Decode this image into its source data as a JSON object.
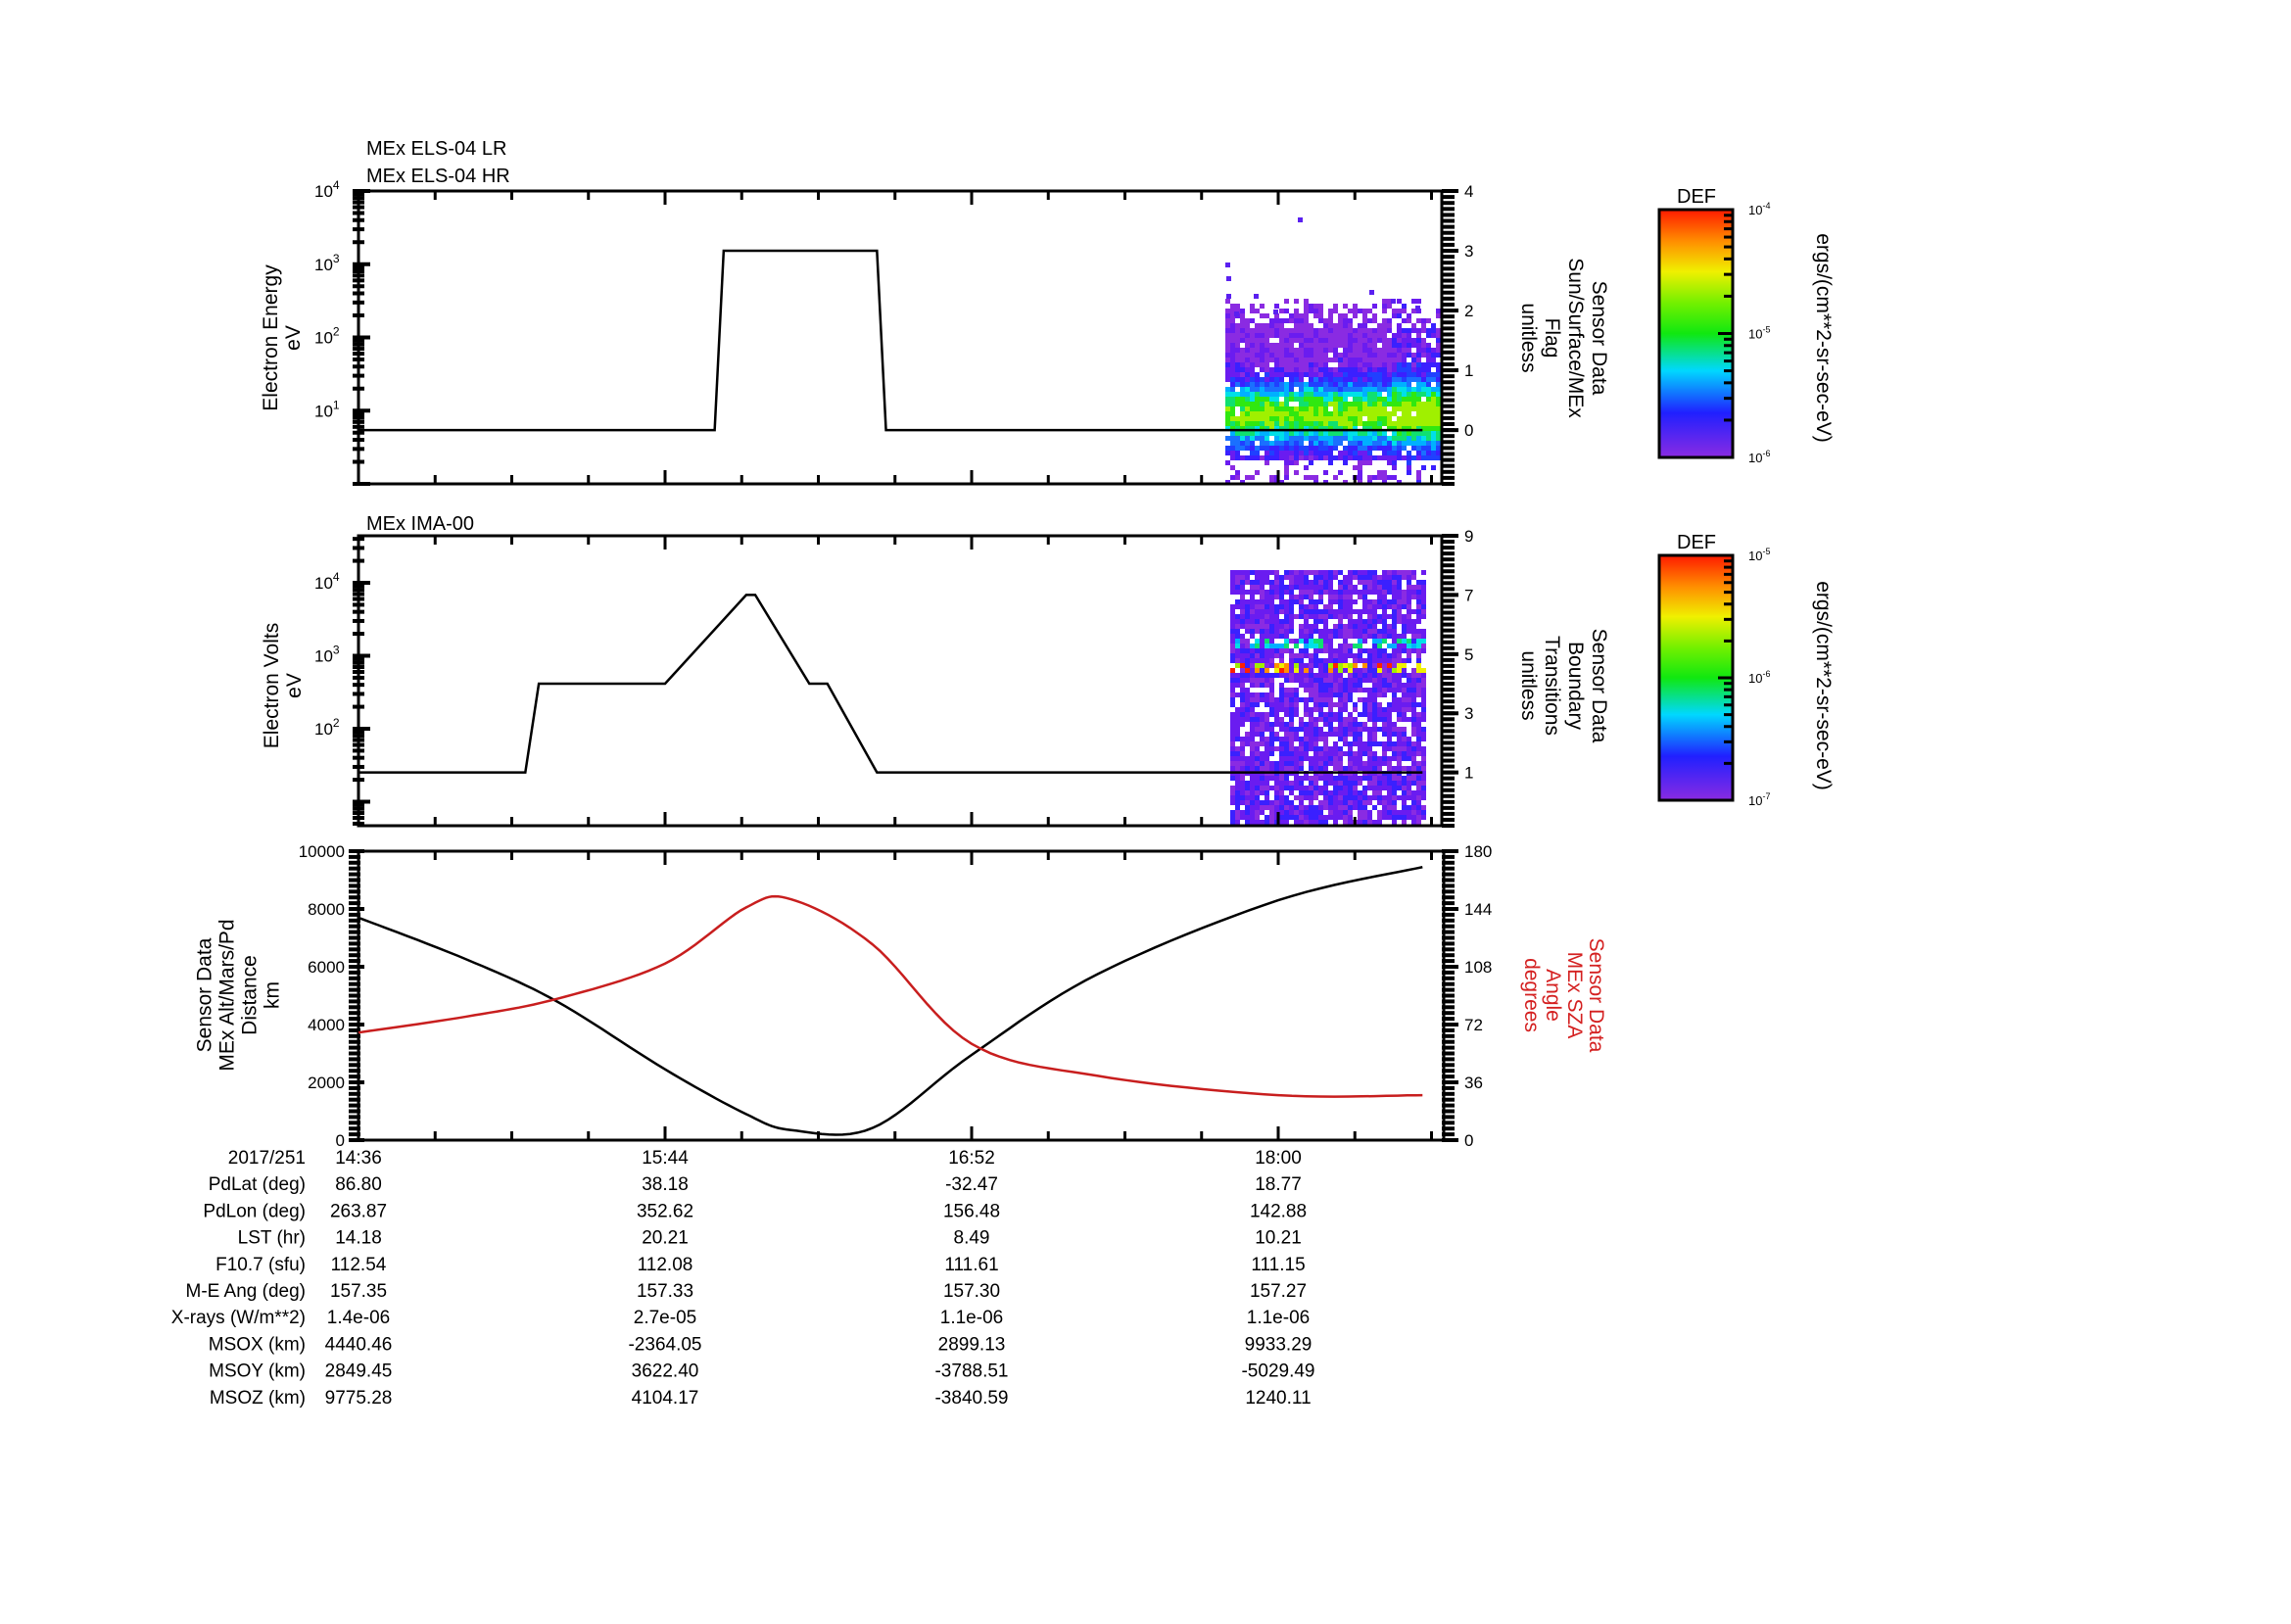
{
  "figure": {
    "instrument_titles": [
      "MEx ELS-04 LR",
      "MEx ELS-04 HR"
    ],
    "panel2_title": "MEx IMA-00",
    "date": "2017/251"
  },
  "colors": {
    "line_black": "#000000",
    "line_red": "#c81e1e",
    "sza_label": "#d42020"
  },
  "chart_data": [
    {
      "type": "heatmap",
      "title": "MEx ELS-04 LR / MEx ELS-04 HR",
      "ylabel": "Electron Energy",
      "yunit": "eV",
      "yscale": "log",
      "ylim": [
        1,
        10000
      ],
      "yticks": [
        {
          "base": "10",
          "exp": "1",
          "value": 10
        },
        {
          "base": "10",
          "exp": "2",
          "value": 100
        },
        {
          "base": "10",
          "exp": "3",
          "value": 1000
        },
        {
          "base": "10",
          "exp": "4",
          "value": 10000
        }
      ],
      "y2label": [
        "Sensor Data",
        "Sun/Surface/MEx",
        "Flag",
        "unitless"
      ],
      "y2lim": [
        -0.9,
        4
      ],
      "y2ticks": [
        "0",
        "1",
        "2",
        "3",
        "4"
      ],
      "colorbar": {
        "label": "DEF",
        "unit": "ergs/(cm**2-sr-sec-eV)",
        "min": "10-6",
        "max": "10-4",
        "ticks": [
          {
            "b": "10",
            "e": "-4"
          },
          {
            "b": "10",
            "e": "-5"
          },
          {
            "b": "10",
            "e": "-6"
          }
        ]
      },
      "line_series": {
        "name": "Sun/Surface/MEx Flag",
        "x_time": [
          "14:36",
          "15:44",
          "15:55",
          "15:57",
          "16:31",
          "16:33",
          "18:32"
        ],
        "values": [
          0,
          0,
          0,
          3,
          3,
          0,
          0
        ]
      },
      "spectrogram_extent": {
        "start": "17:33",
        "end": "18:32",
        "dense_energy_range_eV": [
          3,
          200
        ],
        "peak_energy_eV": 8
      }
    },
    {
      "type": "heatmap",
      "title": "MEx IMA-00",
      "ylabel": "Electron Volts",
      "yunit": "eV",
      "yscale": "log",
      "ylim": [
        3,
        40000
      ],
      "yticks": [
        {
          "base": "10",
          "exp": "2",
          "value": 100
        },
        {
          "base": "10",
          "exp": "3",
          "value": 1000
        },
        {
          "base": "10",
          "exp": "4",
          "value": 10000
        }
      ],
      "y2label": [
        "Sensor Data",
        "Boundary",
        "Transitions",
        "unitless"
      ],
      "y2lim": [
        -0.8,
        9
      ],
      "y2ticks": [
        "1",
        "3",
        "5",
        "7",
        "9"
      ],
      "colorbar": {
        "label": "DEF",
        "unit": "ergs/(cm**2-sr-sec-eV)",
        "min": "10-7",
        "max": "10-5",
        "ticks": [
          {
            "b": "10",
            "e": "-5"
          },
          {
            "b": "10",
            "e": "-6"
          },
          {
            "b": "10",
            "e": "-7"
          }
        ]
      },
      "line_series": {
        "name": "Boundary Transitions",
        "x_time": [
          "14:36",
          "15:13",
          "15:16",
          "15:44",
          "16:02",
          "16:04",
          "16:16",
          "16:20",
          "16:31",
          "16:36",
          "18:32"
        ],
        "values": [
          1,
          1,
          4,
          4,
          7,
          7,
          4,
          4,
          1,
          1,
          1
        ]
      },
      "spectrogram_extent": {
        "start": "17:34",
        "end": "18:28",
        "hot_energy_bins_eV": [
          800,
          1700
        ]
      }
    },
    {
      "type": "line",
      "x": [
        "14:36",
        "15:00",
        "15:20",
        "15:44",
        "16:02",
        "16:12",
        "16:30",
        "16:52",
        "17:20",
        "18:00",
        "18:32"
      ],
      "xticks": [
        "14:36",
        "15:44",
        "16:52",
        "18:00"
      ],
      "ylabel": [
        "Sensor Data",
        "MEx Alt/Mars/Pd",
        "Distance",
        "km"
      ],
      "ylim": [
        0,
        10000
      ],
      "yticks": [
        "0",
        "2000",
        "4000",
        "6000",
        "8000",
        "10000"
      ],
      "y2label": [
        "Sensor Data",
        "MEx SZA",
        "Angle",
        "degrees"
      ],
      "y2lim": [
        0,
        180
      ],
      "y2ticks": [
        "0",
        "36",
        "72",
        "108",
        "144",
        "180"
      ],
      "series": [
        {
          "name": "MEx Alt",
          "axis": "left",
          "color": "#000000",
          "values": [
            7700,
            6250,
            4800,
            2450,
            900,
            350,
            420,
            2950,
            5750,
            8300,
            9450
          ]
        },
        {
          "name": "MEx SZA",
          "axis": "right",
          "color": "#c81e1e",
          "values": [
            67,
            77,
            88,
            110,
            145,
            150,
            122,
            60,
            40,
            28,
            28
          ]
        }
      ]
    }
  ],
  "ephemeris": {
    "header_label": "2017/251",
    "times": [
      "14:36",
      "15:44",
      "16:52",
      "18:00"
    ],
    "rows": [
      {
        "label": "PdLat (deg)",
        "values": [
          "86.80",
          "38.18",
          "-32.47",
          "18.77"
        ]
      },
      {
        "label": "PdLon (deg)",
        "values": [
          "263.87",
          "352.62",
          "156.48",
          "142.88"
        ]
      },
      {
        "label": "LST (hr)",
        "values": [
          "14.18",
          "20.21",
          "8.49",
          "10.21"
        ]
      },
      {
        "label": "F10.7 (sfu)",
        "values": [
          "112.54",
          "112.08",
          "111.61",
          "111.15"
        ]
      },
      {
        "label": "M-E Ang (deg)",
        "values": [
          "157.35",
          "157.33",
          "157.30",
          "157.27"
        ]
      },
      {
        "label": "X-rays (W/m**2)",
        "values": [
          "1.4e-06",
          "2.7e-05",
          "1.1e-06",
          "1.1e-06"
        ]
      },
      {
        "label": "MSOX (km)",
        "values": [
          "4440.46",
          "-2364.05",
          "2899.13",
          "9933.29"
        ]
      },
      {
        "label": "MSOY (km)",
        "values": [
          "2849.45",
          "3622.40",
          "-3788.51",
          "-5029.49"
        ]
      },
      {
        "label": "MSOZ (km)",
        "values": [
          "9775.28",
          "4104.17",
          "-3840.59",
          "1240.11"
        ]
      }
    ]
  }
}
